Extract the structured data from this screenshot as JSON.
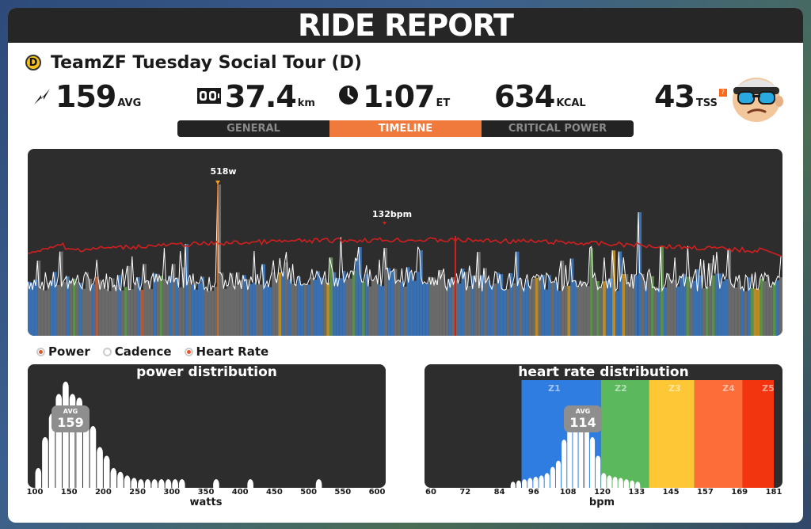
{
  "header": {
    "title": "RIDE REPORT"
  },
  "event": {
    "category": "D",
    "name": "TeamZF Tuesday Social Tour (D)"
  },
  "stats": {
    "power": {
      "value": "159",
      "unit": "AVG",
      "icon": "lightning-icon"
    },
    "distance": {
      "value": "37.4",
      "unit": "km",
      "icon": "odometer-icon"
    },
    "time": {
      "value": "1:07",
      "unit": "ET",
      "icon": "clock-icon"
    },
    "calories": {
      "value": "634",
      "unit": "KCAL"
    },
    "tss": {
      "value": "43",
      "unit": "TSS",
      "help": "?"
    }
  },
  "tabs": [
    {
      "label": "GENERAL",
      "active": false
    },
    {
      "label": "TIMELINE",
      "active": true
    },
    {
      "label": "CRITICAL POWER",
      "active": false
    }
  ],
  "timeline": {
    "power_peak_label": "518w",
    "hr_peak_label": "132bpm",
    "colors": {
      "power": "#ffffff",
      "heart_rate": "#d11f1f",
      "background": "#2d2d2d"
    }
  },
  "legend": [
    {
      "label": "Power",
      "on": true
    },
    {
      "label": "Cadence",
      "on": false
    },
    {
      "label": "Heart Rate",
      "on": true
    }
  ],
  "power_distribution": {
    "title": "power distribution",
    "avg_label": "AVG",
    "avg_value": "159",
    "xlabel": "watts",
    "ticks": [
      "100",
      "150",
      "200",
      "250",
      "300",
      "350",
      "400",
      "450",
      "500",
      "550",
      "600"
    ]
  },
  "hr_distribution": {
    "title": "heart rate distribution",
    "avg_label": "AVG",
    "avg_value": "114",
    "xlabel": "bpm",
    "ticks": [
      "60",
      "72",
      "84",
      "96",
      "108",
      "120",
      "133",
      "145",
      "157",
      "169",
      "181"
    ],
    "zones": [
      {
        "label": "Z1",
        "color": "#2f7de1"
      },
      {
        "label": "Z2",
        "color": "#5cb85c"
      },
      {
        "label": "Z3",
        "color": "#fdc735"
      },
      {
        "label": "Z4",
        "color": "#fc6d3a"
      },
      {
        "label": "Z5",
        "color": "#f2350f"
      }
    ]
  },
  "chart_data": [
    {
      "type": "bar",
      "title": "power distribution",
      "xlabel": "watts",
      "xlim": [
        100,
        600
      ],
      "bin_width_w": 10,
      "categories": [
        100,
        110,
        120,
        130,
        140,
        150,
        160,
        170,
        180,
        190,
        200,
        210,
        220,
        230,
        240,
        250,
        260,
        270,
        280,
        290,
        300,
        310,
        360,
        410,
        510
      ],
      "values": [
        0.16,
        0.41,
        0.6,
        0.76,
        0.86,
        0.76,
        0.73,
        0.62,
        0.5,
        0.33,
        0.26,
        0.16,
        0.13,
        0.1,
        0.08,
        0.07,
        0.07,
        0.07,
        0.07,
        0.07,
        0.07,
        0.07,
        0.07,
        0.07,
        0.07
      ],
      "avg": 159
    },
    {
      "type": "bar",
      "title": "heart rate distribution",
      "xlabel": "bpm",
      "xlim": [
        60,
        181
      ],
      "bin_width_bpm": 2,
      "categories": [
        88,
        90,
        92,
        94,
        96,
        98,
        100,
        102,
        104,
        106,
        108,
        110,
        112,
        114,
        116,
        118,
        120,
        122,
        124,
        126,
        128,
        130,
        132
      ],
      "values": [
        0.05,
        0.06,
        0.07,
        0.08,
        0.09,
        0.1,
        0.12,
        0.17,
        0.22,
        0.39,
        0.49,
        0.55,
        0.56,
        0.52,
        0.41,
        0.26,
        0.12,
        0.1,
        0.09,
        0.08,
        0.07,
        0.06,
        0.05
      ],
      "avg": 114,
      "zones": [
        [
          92,
          120
        ],
        [
          120,
          137
        ],
        [
          137,
          153
        ],
        [
          153,
          170
        ],
        [
          170,
          181
        ]
      ]
    }
  ]
}
